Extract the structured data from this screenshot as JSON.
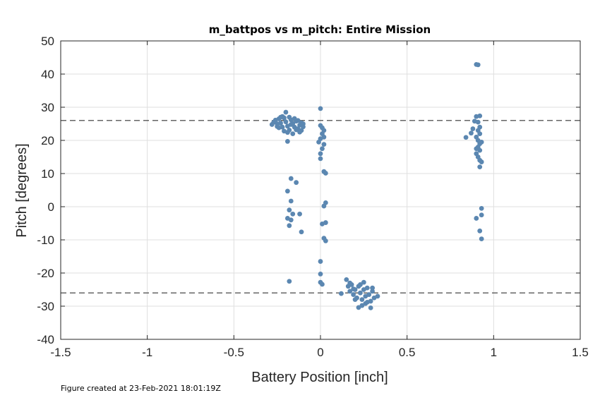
{
  "chart_data": {
    "type": "scatter",
    "title": "m_battpos vs m_pitch: Entire Mission",
    "xlabel": "Battery Position [inch]",
    "ylabel": "Pitch [degrees]",
    "xlim": [
      -1.5,
      1.5
    ],
    "ylim": [
      -40,
      50
    ],
    "xticks": [
      "-1.5",
      "-1",
      "-0.5",
      "0",
      "0.5",
      "1",
      "1.5"
    ],
    "yticks": [
      "50",
      "40",
      "30",
      "20",
      "10",
      "0",
      "-10",
      "-20",
      "-30",
      "-40"
    ],
    "grid": true,
    "point_color": "#5b87b1",
    "reference_lines": [
      26,
      -26
    ],
    "series": [
      {
        "points": [
          [
            -0.28,
            24.8
          ],
          [
            -0.27,
            25.5
          ],
          [
            -0.26,
            26.1
          ],
          [
            -0.25,
            25.0
          ],
          [
            -0.24,
            26.5
          ],
          [
            -0.23,
            25.2
          ],
          [
            -0.22,
            24.0
          ],
          [
            -0.21,
            26.8
          ],
          [
            -0.2,
            25.6
          ],
          [
            -0.19,
            24.3
          ],
          [
            -0.18,
            23.1
          ],
          [
            -0.17,
            26.2
          ],
          [
            -0.16,
            25.1
          ],
          [
            -0.15,
            24.0
          ],
          [
            -0.14,
            25.8
          ],
          [
            -0.13,
            23.5
          ],
          [
            -0.12,
            24.6
          ],
          [
            -0.11,
            25.3
          ],
          [
            -0.1,
            24.1
          ],
          [
            -0.2,
            28.5
          ],
          [
            -0.22,
            27.2
          ],
          [
            -0.18,
            27.0
          ],
          [
            -0.24,
            23.8
          ],
          [
            -0.19,
            22.4
          ],
          [
            -0.16,
            22.0
          ],
          [
            -0.14,
            23.2
          ],
          [
            -0.21,
            22.8
          ],
          [
            -0.17,
            24.8
          ],
          [
            -0.13,
            26.0
          ],
          [
            -0.11,
            23.0
          ],
          [
            -0.23,
            27.0
          ],
          [
            -0.25,
            24.2
          ],
          [
            -0.15,
            26.6
          ],
          [
            -0.12,
            22.5
          ],
          [
            -0.19,
            19.7
          ],
          [
            -0.1,
            25.0
          ],
          [
            -0.17,
            8.5
          ],
          [
            -0.14,
            7.3
          ],
          [
            -0.19,
            4.7
          ],
          [
            -0.17,
            1.7
          ],
          [
            -0.18,
            -1.0
          ],
          [
            -0.16,
            -2.2
          ],
          [
            -0.12,
            -2.2
          ],
          [
            -0.19,
            -3.5
          ],
          [
            -0.17,
            -4.0
          ],
          [
            -0.18,
            -5.7
          ],
          [
            -0.11,
            -7.6
          ],
          [
            -0.18,
            -22.5
          ],
          [
            0.0,
            29.6
          ],
          [
            0.0,
            24.5
          ],
          [
            0.01,
            23.8
          ],
          [
            0.02,
            23.0
          ],
          [
            0.01,
            22.0
          ],
          [
            0.02,
            21.0
          ],
          [
            0.0,
            20.5
          ],
          [
            -0.01,
            19.5
          ],
          [
            0.02,
            18.8
          ],
          [
            0.01,
            17.5
          ],
          [
            0.0,
            16.0
          ],
          [
            0.0,
            14.5
          ],
          [
            0.02,
            10.6
          ],
          [
            0.03,
            10.1
          ],
          [
            0.03,
            1.2
          ],
          [
            0.02,
            0.2
          ],
          [
            0.01,
            -5.2
          ],
          [
            0.03,
            -4.8
          ],
          [
            0.02,
            -9.5
          ],
          [
            0.03,
            -10.3
          ],
          [
            0.0,
            -16.5
          ],
          [
            0.0,
            -20.3
          ],
          [
            0.0,
            -22.8
          ],
          [
            0.01,
            -23.4
          ],
          [
            0.12,
            -26.2
          ],
          [
            0.15,
            -22.0
          ],
          [
            0.16,
            -24.0
          ],
          [
            0.17,
            -25.5
          ],
          [
            0.18,
            -23.5
          ],
          [
            0.19,
            -26.5
          ],
          [
            0.2,
            -25.0
          ],
          [
            0.21,
            -27.5
          ],
          [
            0.22,
            -24.0
          ],
          [
            0.23,
            -26.0
          ],
          [
            0.24,
            -28.0
          ],
          [
            0.25,
            -25.0
          ],
          [
            0.26,
            -27.0
          ],
          [
            0.27,
            -24.5
          ],
          [
            0.28,
            -26.5
          ],
          [
            0.29,
            -28.5
          ],
          [
            0.3,
            -25.5
          ],
          [
            0.31,
            -27.5
          ],
          [
            0.33,
            -27.0
          ],
          [
            0.22,
            -30.4
          ],
          [
            0.24,
            -29.8
          ],
          [
            0.29,
            -30.5
          ],
          [
            0.26,
            -29.2
          ],
          [
            0.2,
            -28.0
          ],
          [
            0.17,
            -23.0
          ],
          [
            0.25,
            -22.8
          ],
          [
            0.3,
            -24.5
          ],
          [
            0.19,
            -24.8
          ],
          [
            0.27,
            -28.8
          ],
          [
            0.23,
            -23.5
          ],
          [
            0.9,
            42.9
          ],
          [
            0.91,
            42.8
          ],
          [
            0.9,
            27.2
          ],
          [
            0.92,
            27.4
          ],
          [
            0.91,
            25.5
          ],
          [
            0.92,
            24.0
          ],
          [
            0.91,
            23.0
          ],
          [
            0.92,
            22.0
          ],
          [
            0.9,
            21.0
          ],
          [
            0.91,
            20.0
          ],
          [
            0.92,
            19.0
          ],
          [
            0.91,
            18.0
          ],
          [
            0.92,
            17.0
          ],
          [
            0.9,
            16.0
          ],
          [
            0.91,
            15.0
          ],
          [
            0.92,
            14.0
          ],
          [
            0.93,
            13.5
          ],
          [
            0.92,
            12.0
          ],
          [
            0.88,
            23.5
          ],
          [
            0.87,
            22.2
          ],
          [
            0.84,
            20.9
          ],
          [
            0.89,
            25.8
          ],
          [
            0.93,
            19.5
          ],
          [
            0.9,
            17.5
          ],
          [
            0.93,
            -0.5
          ],
          [
            0.93,
            -2.5
          ],
          [
            0.9,
            -3.5
          ],
          [
            0.92,
            -7.3
          ],
          [
            0.93,
            -9.7
          ]
        ]
      }
    ]
  },
  "footnote": "Figure created at 23-Feb-2021 18:01:19Z"
}
